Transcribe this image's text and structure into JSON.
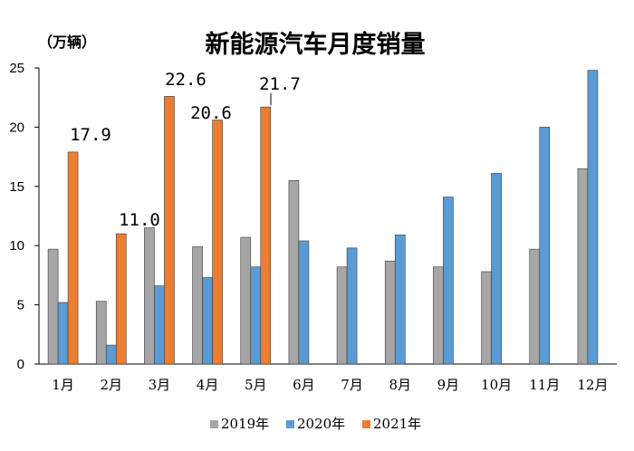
{
  "chart_data": {
    "type": "bar",
    "title": "新能源汽车月度销量",
    "ylabel": "（万辆）",
    "xlabel": "",
    "ylim": [
      0,
      25
    ],
    "yticks": [
      "0",
      "5",
      "10",
      "15",
      "20",
      "25"
    ],
    "categories": [
      "1月",
      "2月",
      "3月",
      "4月",
      "5月",
      "6月",
      "7月",
      "8月",
      "9月",
      "10月",
      "11月",
      "12月"
    ],
    "series": [
      {
        "name": "2019年",
        "color": "#a6a6a6",
        "values": [
          9.7,
          5.3,
          11.5,
          9.9,
          10.7,
          15.5,
          8.2,
          8.7,
          8.2,
          7.8,
          9.7,
          16.5
        ]
      },
      {
        "name": "2020年",
        "color": "#5b9bd5",
        "values": [
          5.2,
          1.6,
          6.6,
          7.3,
          8.2,
          10.4,
          9.8,
          10.9,
          14.1,
          16.1,
          20.0,
          24.8
        ]
      },
      {
        "name": "2021年",
        "color": "#ed7d31",
        "values": [
          17.9,
          11.0,
          22.6,
          20.6,
          21.7,
          null,
          null,
          null,
          null,
          null,
          null,
          null
        ]
      }
    ],
    "data_labels": [
      {
        "text": "17.9",
        "category": 0
      },
      {
        "text": "11.0",
        "category": 1
      },
      {
        "text": "22.6",
        "category": 2
      },
      {
        "text": "20.6",
        "category": 3
      },
      {
        "text": "21.7",
        "category": 4
      }
    ],
    "legend": [
      "2019年",
      "2020年",
      "2021年"
    ],
    "legend_position": "bottom",
    "grid": false
  }
}
